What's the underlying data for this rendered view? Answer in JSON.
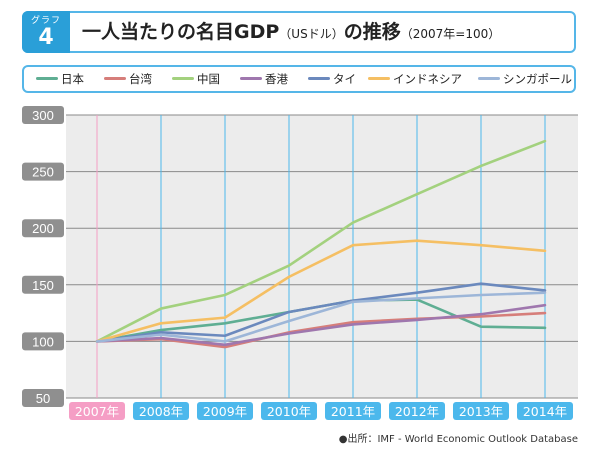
{
  "header": {
    "badge_label": "グラフ",
    "badge_number": "4",
    "title_main": "一人当たりの名目GDP",
    "title_unit": "（USドル）",
    "title_suffix": "の推移",
    "title_note": "（2007年=100）"
  },
  "source_note": "●出所：IMF - World Economic Outlook Database",
  "colors": {
    "frame": "#55b6e8",
    "badge": "#2a9fd8",
    "plot_bg": "#ececec",
    "year_tab": "#4cb8ec",
    "year_tab_base": "#f59ec5",
    "axis_label_bg": "#8f8f8f"
  },
  "chart_data": {
    "type": "line",
    "title": "一人当たりの名目GDP（USドル）の推移（2007年=100）",
    "x": [
      "2007年",
      "2008年",
      "2009年",
      "2010年",
      "2011年",
      "2012年",
      "2013年",
      "2014年"
    ],
    "yticks": [
      300,
      250,
      200,
      150,
      100,
      50
    ],
    "ylim": [
      50,
      300
    ],
    "grid": true,
    "legend_position": "top",
    "series": [
      {
        "name": "日本",
        "color": "#5fae93",
        "values": [
          100,
          110,
          116,
          126,
          136,
          137,
          113,
          112
        ]
      },
      {
        "name": "台湾",
        "color": "#d67e7a",
        "values": [
          100,
          102,
          95,
          108,
          117,
          120,
          122,
          125
        ]
      },
      {
        "name": "中国",
        "color": "#a3d17e",
        "values": [
          100,
          129,
          141,
          167,
          205,
          230,
          255,
          277
        ]
      },
      {
        "name": "香港",
        "color": "#9f77ae",
        "values": [
          100,
          103,
          97,
          107,
          115,
          119,
          124,
          132
        ]
      },
      {
        "name": "タイ",
        "color": "#6b89bd",
        "values": [
          100,
          108,
          105,
          126,
          136,
          143,
          151,
          145
        ]
      },
      {
        "name": "インドネシア",
        "color": "#f5bf63",
        "values": [
          100,
          116,
          121,
          157,
          185,
          189,
          185,
          180
        ]
      },
      {
        "name": "シンガポール",
        "color": "#9db6d8",
        "values": [
          100,
          106,
          100,
          118,
          135,
          138,
          141,
          143
        ]
      }
    ]
  }
}
